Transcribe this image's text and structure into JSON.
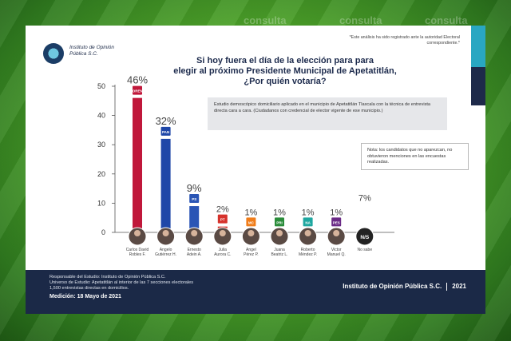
{
  "watermarks": [
    "consulta",
    "consulta",
    "consulta"
  ],
  "org": {
    "name": "Instituto de Opinión Pública S.C."
  },
  "disclaimer": "*Este análisis ha sido registrado ante la autoridad Electoral correspondiente.*",
  "title": [
    "Si hoy fuera el día de la elección para para",
    "elegir al próximo Presidente Municipal de Apetatitlán,",
    "¿Por quién votaría?"
  ],
  "study_note": "Estudio demoscópico domiciliario aplicado en el municipio de Apetatitlán Tlaxcala con la técnica de entrevista directa cara a cara. (Ciudadanos con credencial de elector vigente de ese municipio.)",
  "side_note": "Nota: los candidatos que no aparezcan, no obtuvieron menciones en las encuestas realizadas.",
  "footer": {
    "responsible": "Responsable del Estudio: Instituto de Opinión Pública S.C.",
    "universe": "Universo de Estudio: Apetatitlán al interior de las 7 secciones electorales",
    "sample": "1,500 entrevistas directas en domicilios.",
    "date": "Medición: 18 Mayo de 2021",
    "brand": "Instituto de Opinión Pública S.C.",
    "year": "2021"
  },
  "chart_data": {
    "type": "bar",
    "title": "Si hoy fuera el día de la elección para para elegir al próximo Presidente Municipal de Apetatitlán, ¿Por quién votaría?",
    "ylim": [
      0,
      50
    ],
    "yticks": [
      0,
      10,
      20,
      30,
      40,
      50
    ],
    "grid": false,
    "categories": [
      "Carlos David Robles F.",
      "Angelo Gutiérrez H.",
      "Ernesto Adein A.",
      "Julia Aurora C.",
      "Angel Pérez P.",
      "Juana Beatriz L.",
      "Roberto Méndez P.",
      "Victor Manuel Q.",
      "No sabe"
    ],
    "values": [
      46,
      32,
      9,
      2,
      1,
      1,
      1,
      1,
      7
    ],
    "value_labels": [
      "46%",
      "32%",
      "9%",
      "2%",
      "1%",
      "1%",
      "1%",
      "1%",
      "7%"
    ],
    "parties": [
      "MORENA",
      "PAN",
      "PS",
      "PT",
      "MC",
      "PRI",
      "NA",
      "PES",
      "N/S"
    ],
    "colors": [
      "#c0173a",
      "#1f47a8",
      "#2a55b5",
      "#d6322c",
      "#f07d1a",
      "#2a8c3a",
      "#1fa7a0",
      "#6a2a86",
      "#3a3a3a"
    ]
  }
}
